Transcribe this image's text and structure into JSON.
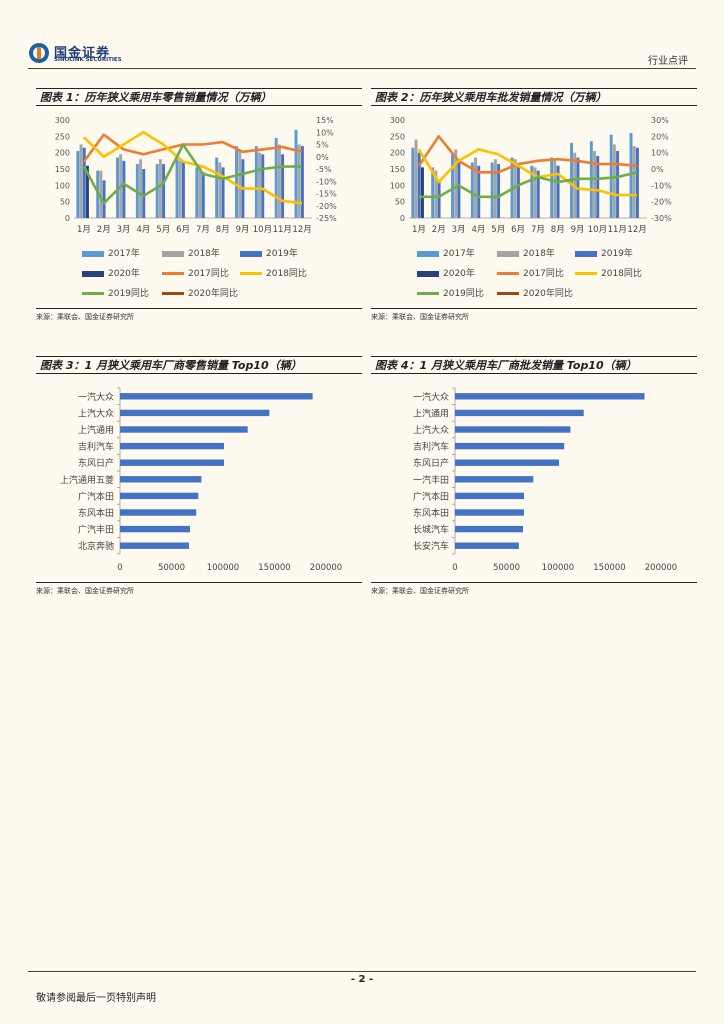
{
  "header": {
    "logo_cn": "国金证券",
    "logo_en": "SINOLINK SECURITIES",
    "report_type": "行业点评"
  },
  "colors": {
    "s2017": "#5b9bd5",
    "s2018": "#a5a5a5",
    "s2019": "#4472c4",
    "s2020": "#264478",
    "l2017": "#ed7d31",
    "l2018": "#ffc000",
    "l2019": "#70ad47",
    "l2020": "#9e480e",
    "hbar": "#4472c4"
  },
  "chart_data": [
    {
      "type": "bar+line",
      "title": "图表 1：历年狭义乘用车零售销量情况（万辆）",
      "source": "来源：乘联会、国金证券研究所",
      "categories": [
        "1月",
        "2月",
        "3月",
        "4月",
        "5月",
        "6月",
        "7月",
        "8月",
        "9月",
        "10月",
        "11月",
        "12月"
      ],
      "y_left": {
        "min": 0,
        "max": 300,
        "ticks": [
          "0",
          "50",
          "100",
          "150",
          "200",
          "250",
          "300"
        ]
      },
      "y_right": {
        "min": -25,
        "max": 15,
        "ticks": [
          "-25%",
          "-20%",
          "-15%",
          "-10%",
          "-5%",
          "0%",
          "5%",
          "10%",
          "15%"
        ]
      },
      "bars": [
        {
          "name": "2017年",
          "values": [
            205,
            145,
            185,
            165,
            165,
            180,
            155,
            185,
            220,
            220,
            245,
            270
          ]
        },
        {
          "name": "2018年",
          "values": [
            225,
            145,
            195,
            180,
            180,
            175,
            155,
            170,
            210,
            200,
            225,
            225
          ]
        },
        {
          "name": "2019年",
          "values": [
            215,
            115,
            175,
            150,
            165,
            175,
            140,
            155,
            180,
            195,
            195,
            220
          ]
        },
        {
          "name": "2020年",
          "values": [
            160,
            null,
            null,
            null,
            null,
            null,
            null,
            null,
            null,
            null,
            null,
            null
          ]
        }
      ],
      "lines": [
        {
          "name": "2017同比",
          "values": [
            -2,
            9,
            3,
            1,
            3,
            5,
            5,
            6,
            2,
            3,
            4,
            2
          ]
        },
        {
          "name": "2018同比",
          "values": [
            8,
            0,
            5,
            10,
            5,
            -2,
            -4,
            -8,
            -13,
            -13,
            -18,
            -19
          ]
        },
        {
          "name": "2019同比",
          "values": [
            -4,
            -19,
            -11,
            -16,
            -11,
            5,
            -7,
            -9,
            -7,
            -5,
            -4,
            -4
          ]
        },
        {
          "name": "2020年同比",
          "values": [
            null,
            null,
            null,
            null,
            null,
            null,
            null,
            null,
            null,
            null,
            null,
            null
          ]
        }
      ],
      "legend": [
        "2017年",
        "2018年",
        "2019年",
        "2020年",
        "2017同比",
        "2018同比",
        "2019同比",
        "2020年同比"
      ]
    },
    {
      "type": "bar+line",
      "title": "图表 2：历年狭义乘用车批发销量情况（万辆）",
      "source": "来源：乘联会、国金证券研究所",
      "categories": [
        "1月",
        "2月",
        "3月",
        "4月",
        "5月",
        "6月",
        "7月",
        "8月",
        "9月",
        "10月",
        "11月",
        "12月"
      ],
      "y_left": {
        "min": 0,
        "max": 300,
        "ticks": [
          "0",
          "50",
          "100",
          "150",
          "200",
          "250",
          "300"
        ]
      },
      "y_right": {
        "min": -30,
        "max": 30,
        "ticks": [
          "-30%",
          "-20%",
          "-10%",
          "0%",
          "10%",
          "20%",
          "30%"
        ]
      },
      "bars": [
        {
          "name": "2017年",
          "values": [
            215,
            155,
            200,
            170,
            170,
            185,
            160,
            185,
            230,
            235,
            255,
            260
          ]
        },
        {
          "name": "2018年",
          "values": [
            240,
            145,
            210,
            185,
            180,
            180,
            155,
            180,
            200,
            205,
            225,
            220
          ]
        },
        {
          "name": "2019年",
          "values": [
            200,
            115,
            180,
            160,
            165,
            165,
            145,
            160,
            185,
            190,
            205,
            215
          ]
        },
        {
          "name": "2020年",
          "values": [
            155,
            null,
            null,
            null,
            null,
            null,
            null,
            null,
            null,
            null,
            null,
            null
          ]
        }
      ],
      "lines": [
        {
          "name": "2017同比",
          "values": [
            2,
            20,
            5,
            -2,
            -2,
            3,
            5,
            6,
            5,
            3,
            3,
            2
          ]
        },
        {
          "name": "2018同比",
          "values": [
            12,
            -8,
            5,
            12,
            9,
            2,
            -5,
            -3,
            -12,
            -13,
            -16,
            -16
          ]
        },
        {
          "name": "2019同比",
          "values": [
            -17,
            -17,
            -10,
            -17,
            -17,
            -10,
            -5,
            -8,
            -6,
            -6,
            -5,
            -2
          ]
        },
        {
          "name": "2020年同比",
          "values": [
            null,
            null,
            null,
            null,
            null,
            null,
            null,
            null,
            null,
            null,
            null,
            null
          ]
        }
      ],
      "legend": [
        "2017年",
        "2018年",
        "2019年",
        "2020年",
        "2017同比",
        "2018同比",
        "2019同比",
        "2020年同比"
      ]
    },
    {
      "type": "bar",
      "orientation": "horizontal",
      "title": "图表 3：1 月狭义乘用车厂商零售销量 Top10（辆）",
      "source": "来源：乘联会、国金证券研究所",
      "categories": [
        "一汽大众",
        "上汽大众",
        "上汽通用",
        "吉利汽车",
        "东风日产",
        "上汽通用五菱",
        "广汽本田",
        "东风本田",
        "广汽丰田",
        "北京奔驰"
      ],
      "values": [
        187000,
        145000,
        124000,
        101000,
        101000,
        79000,
        76000,
        74000,
        68000,
        67000
      ],
      "xlim": [
        0,
        200000
      ],
      "ticks": [
        "0",
        "50000",
        "100000",
        "150000",
        "200000"
      ]
    },
    {
      "type": "bar",
      "orientation": "horizontal",
      "title": "图表 4：1 月狭义乘用车厂商批发销量 Top10（辆）",
      "source": "来源：乘联会、国金证券研究所",
      "categories": [
        "一汽大众",
        "上汽通用",
        "上汽大众",
        "吉利汽车",
        "东风日产",
        "一汽丰田",
        "广汽本田",
        "东风本田",
        "长城汽车",
        "长安汽车"
      ],
      "values": [
        184000,
        125000,
        112000,
        106000,
        101000,
        76000,
        67000,
        67000,
        66000,
        62000
      ],
      "xlim": [
        0,
        200000
      ],
      "ticks": [
        "0",
        "50000",
        "100000",
        "150000",
        "200000"
      ]
    }
  ],
  "footer": {
    "page": "- 2 -",
    "note": "敬请参阅最后一页特别声明"
  }
}
